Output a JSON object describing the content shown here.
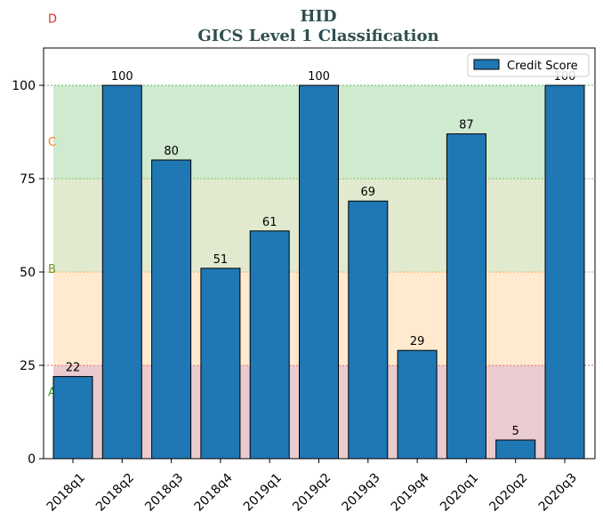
{
  "chart_data": {
    "type": "bar",
    "title": "HID",
    "subtitle": "GICS Level 1 Classification",
    "categories": [
      "2018q1",
      "2018q2",
      "2018q3",
      "2018q4",
      "2019q1",
      "2019q2",
      "2019q3",
      "2019q4",
      "2020q1",
      "2020q2",
      "2020q3"
    ],
    "series": [
      {
        "name": "Credit Score",
        "values": [
          22,
          100,
          80,
          51,
          61,
          100,
          69,
          29,
          87,
          5,
          100
        ],
        "color": "#1f77b4"
      }
    ],
    "data_labels": [
      "22",
      "100",
      "80",
      "51",
      "61",
      "100",
      "69",
      "29",
      "87",
      "5",
      "100"
    ],
    "ylim": [
      0,
      110
    ],
    "yticks": [
      0,
      25,
      50,
      75,
      100
    ],
    "ytick_labels": [
      "0",
      "25",
      "50",
      "75",
      "100"
    ],
    "xlabel": "",
    "ylabel": "",
    "legend_position": "top-right",
    "grid": false,
    "bands": [
      {
        "from": 0,
        "to": 25,
        "color": "#d9a0a8",
        "line_color": "#d62728"
      },
      {
        "from": 25,
        "to": 50,
        "color": "#ffd8a8",
        "line_color": "#ff7f0e"
      },
      {
        "from": 50,
        "to": 75,
        "color": "#c8d9a8",
        "line_color": "#6a9a23"
      },
      {
        "from": 75,
        "to": 100,
        "color": "#a8d8a8",
        "line_color": "#2ca02c"
      }
    ],
    "band_labels": [
      {
        "text": "A",
        "y": 18,
        "color": "#2ca02c"
      },
      {
        "text": "B",
        "y": 51,
        "color": "#6a9a23"
      },
      {
        "text": "C",
        "y": 85,
        "color": "#ff7f0e"
      },
      {
        "text": "D",
        "y": 118,
        "color": "#d62728"
      }
    ]
  }
}
